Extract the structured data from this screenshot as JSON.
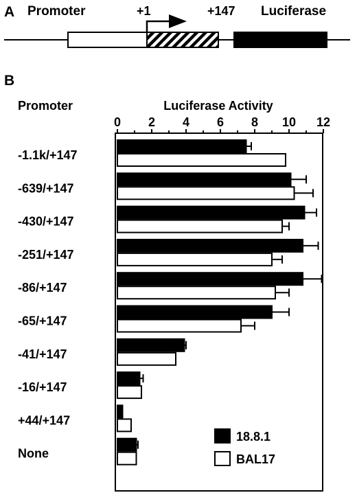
{
  "panel_a": {
    "label": "A",
    "promoter_label": "Promoter",
    "start_label": "+1",
    "end_label": "+147",
    "reporter_label": "Luciferase"
  },
  "panel_b": {
    "label": "B",
    "row_header": "Promoter"
  },
  "chart_data": {
    "type": "bar",
    "orientation": "horizontal",
    "title": "",
    "xlabel": "Luciferase Activity",
    "ylabel": "Promoter",
    "xlim": [
      0,
      12
    ],
    "xticks": [
      0,
      2,
      4,
      6,
      8,
      10,
      12
    ],
    "xtick_labels": [
      "0",
      "2",
      "4",
      "6",
      "8",
      "10",
      "12"
    ],
    "categories": [
      "-1.1k/+147",
      "-639/+147",
      "-430/+147",
      "-251/+147",
      "-86/+147",
      "-65/+147",
      "-41/+147",
      "-16/+147",
      "+44/+147",
      "None"
    ],
    "series": [
      {
        "name": "18.8.1",
        "color": "#000000",
        "values": [
          7.5,
          10.1,
          10.9,
          10.8,
          10.8,
          9.0,
          3.9,
          1.3,
          0.3,
          1.1
        ],
        "errors": [
          0.3,
          0.9,
          0.7,
          0.9,
          1.1,
          1.0,
          0.1,
          0.2,
          0.0,
          0.1
        ]
      },
      {
        "name": "BAL17",
        "color": "#ffffff",
        "values": [
          9.8,
          10.3,
          9.6,
          9.0,
          9.2,
          7.2,
          3.4,
          1.4,
          0.8,
          1.1
        ],
        "errors": [
          0.0,
          1.1,
          0.4,
          0.6,
          0.8,
          0.8,
          0.0,
          0.0,
          0.0,
          0.0
        ]
      }
    ],
    "legend": {
      "position": "bottom-right"
    },
    "grid": false
  }
}
